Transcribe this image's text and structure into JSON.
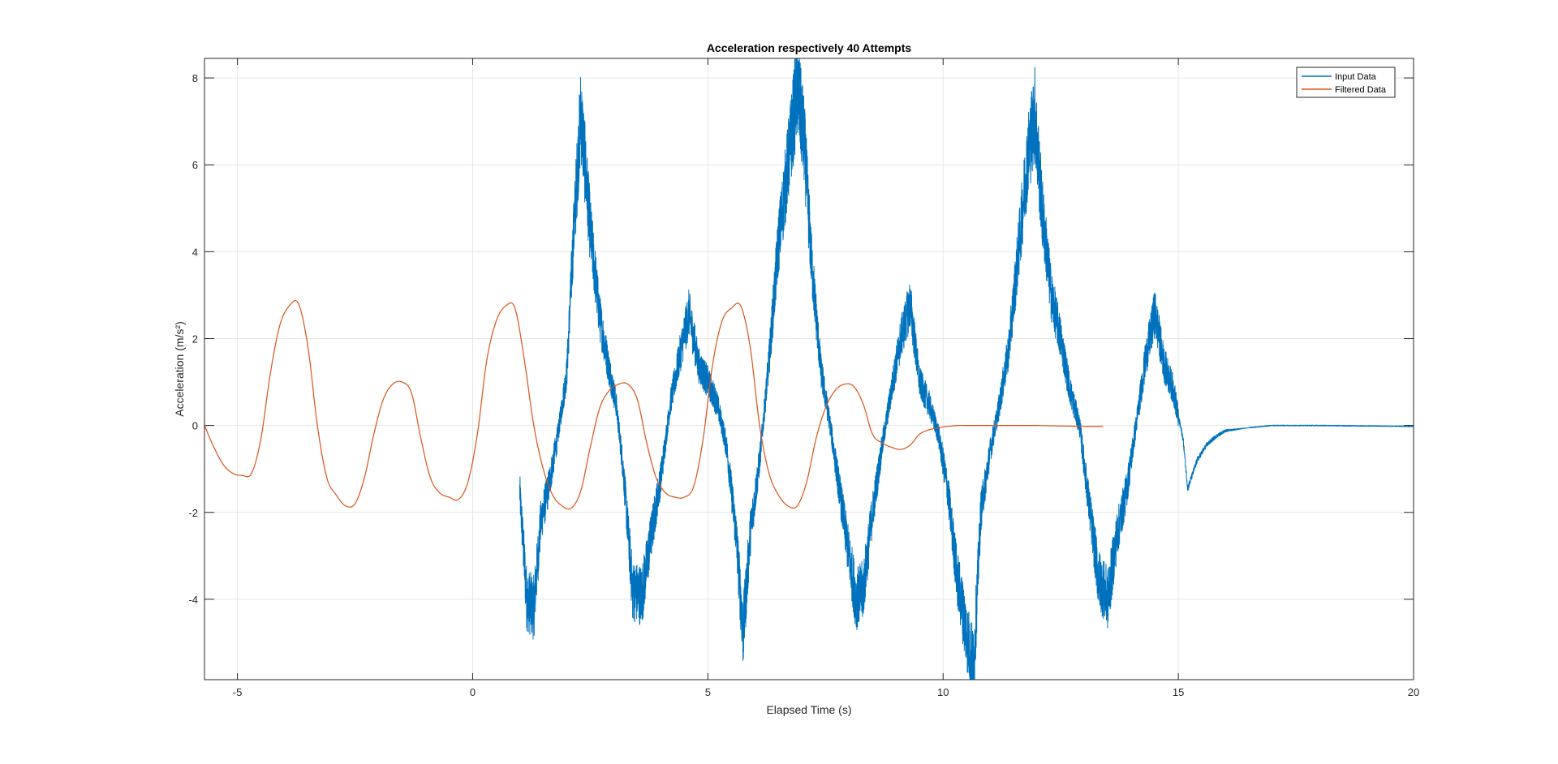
{
  "chart_data": {
    "type": "line",
    "title": "Acceleration respectively 40 Attempts",
    "xlabel": "Elapsed Time (s)",
    "ylabel": "Acceleration (m/s²)",
    "xlim": [
      -5.7,
      20
    ],
    "ylim": [
      -5.85,
      8.45
    ],
    "x_ticks": [
      -5,
      0,
      5,
      10,
      15,
      20
    ],
    "y_ticks": [
      -4,
      -2,
      0,
      2,
      4,
      6,
      8
    ],
    "x_tick_labels": [
      "-5",
      "0",
      "5",
      "10",
      "15",
      "20"
    ],
    "y_tick_labels": [
      "-4",
      "-2",
      "0",
      "2",
      "4",
      "6",
      "8"
    ],
    "grid": true,
    "legend": {
      "position": "top-right",
      "entries": [
        "Input Data",
        "Filtered Data"
      ]
    },
    "series": [
      {
        "name": "Input Data",
        "color": "#0072BD",
        "noisy": true,
        "x": [
          1.0,
          1.15,
          1.3,
          1.45,
          1.6,
          1.8,
          2.0,
          2.15,
          2.3,
          2.5,
          2.7,
          2.9,
          3.05,
          3.2,
          3.4,
          3.6,
          3.8,
          4.0,
          4.2,
          4.4,
          4.6,
          4.8,
          5.0,
          5.2,
          5.4,
          5.6,
          5.75,
          5.9,
          6.1,
          6.3,
          6.5,
          6.7,
          6.9,
          7.05,
          7.2,
          7.4,
          7.6,
          7.8,
          8.0,
          8.15,
          8.3,
          8.5,
          8.7,
          8.9,
          9.1,
          9.3,
          9.5,
          9.7,
          9.9,
          10.1,
          10.3,
          10.5,
          10.65,
          10.8,
          11.0,
          11.2,
          11.4,
          11.6,
          11.8,
          11.95,
          12.1,
          12.3,
          12.5,
          12.7,
          12.9,
          13.1,
          13.3,
          13.5,
          13.7,
          13.9,
          14.1,
          14.3,
          14.5,
          14.7,
          14.9,
          15.0,
          15.1,
          15.2,
          15.4,
          15.6,
          15.8,
          16.0,
          16.5,
          17.0,
          18.0,
          19.0,
          20.0
        ],
        "y": [
          -1.5,
          -4.0,
          -4.2,
          -2.2,
          -1.5,
          -0.3,
          1.2,
          4.5,
          7.2,
          4.5,
          2.5,
          1.3,
          0.5,
          -1.0,
          -3.8,
          -3.9,
          -2.5,
          -1.2,
          0.5,
          1.6,
          2.6,
          1.4,
          1.0,
          0.5,
          -0.5,
          -2.5,
          -4.8,
          -2.5,
          -0.8,
          1.5,
          4.2,
          6.0,
          7.8,
          6.5,
          3.8,
          1.3,
          0.0,
          -1.5,
          -3.0,
          -4.0,
          -3.8,
          -2.0,
          -0.5,
          0.8,
          2.0,
          2.8,
          1.0,
          0.5,
          -0.2,
          -1.5,
          -3.5,
          -4.8,
          -5.6,
          -2.0,
          -0.6,
          0.5,
          1.8,
          4.0,
          6.2,
          7.2,
          5.0,
          3.0,
          2.0,
          0.8,
          0.0,
          -1.8,
          -3.5,
          -4.0,
          -2.5,
          -1.5,
          0.0,
          1.5,
          2.6,
          1.4,
          0.8,
          0.2,
          -0.3,
          -1.45,
          -0.8,
          -0.45,
          -0.25,
          -0.12,
          -0.05,
          0.0,
          0.0,
          -0.01,
          -0.02
        ]
      },
      {
        "name": "Filtered Data",
        "color": "#D95319",
        "noisy": false,
        "x": [
          -5.7,
          -5.5,
          -5.3,
          -5.1,
          -4.9,
          -4.7,
          -4.5,
          -4.3,
          -4.1,
          -3.9,
          -3.7,
          -3.5,
          -3.3,
          -3.1,
          -2.9,
          -2.7,
          -2.5,
          -2.3,
          -2.1,
          -1.9,
          -1.7,
          -1.5,
          -1.3,
          -1.1,
          -0.9,
          -0.7,
          -0.5,
          -0.3,
          -0.1,
          0.1,
          0.3,
          0.5,
          0.7,
          0.9,
          1.1,
          1.3,
          1.5,
          1.7,
          1.9,
          2.1,
          2.3,
          2.5,
          2.7,
          2.9,
          3.1,
          3.3,
          3.5,
          3.7,
          3.9,
          4.1,
          4.3,
          4.5,
          4.7,
          4.9,
          5.1,
          5.3,
          5.5,
          5.7,
          5.9,
          6.1,
          6.3,
          6.5,
          6.7,
          6.9,
          7.1,
          7.3,
          7.5,
          7.7,
          7.9,
          8.1,
          8.3,
          8.5,
          8.7,
          8.9,
          9.1,
          9.3,
          9.5,
          9.7,
          9.9,
          10.1,
          10.3,
          10.5,
          10.8,
          11.2,
          11.6,
          12.0,
          12.5,
          13.0,
          13.4
        ],
        "y": [
          0.0,
          -0.5,
          -0.9,
          -1.1,
          -1.15,
          -1.1,
          -0.3,
          1.2,
          2.3,
          2.75,
          2.8,
          1.8,
          0.0,
          -1.2,
          -1.6,
          -1.85,
          -1.8,
          -1.2,
          -0.2,
          0.6,
          0.95,
          1.0,
          0.75,
          -0.3,
          -1.2,
          -1.55,
          -1.65,
          -1.7,
          -1.3,
          -0.2,
          1.5,
          2.4,
          2.75,
          2.7,
          1.5,
          0.0,
          -1.0,
          -1.6,
          -1.85,
          -1.9,
          -1.5,
          -0.5,
          0.4,
          0.8,
          0.95,
          0.95,
          0.6,
          -0.4,
          -1.2,
          -1.55,
          -1.65,
          -1.65,
          -1.4,
          -0.3,
          1.4,
          2.4,
          2.7,
          2.75,
          1.8,
          0.0,
          -1.1,
          -1.6,
          -1.85,
          -1.85,
          -1.3,
          -0.3,
          0.4,
          0.8,
          0.95,
          0.9,
          0.5,
          -0.2,
          -0.4,
          -0.5,
          -0.55,
          -0.45,
          -0.2,
          -0.1,
          -0.05,
          -0.02,
          0.0,
          0.0,
          0.0,
          0.0,
          0.0,
          0.0,
          -0.01,
          -0.02,
          -0.02
        ]
      }
    ]
  }
}
